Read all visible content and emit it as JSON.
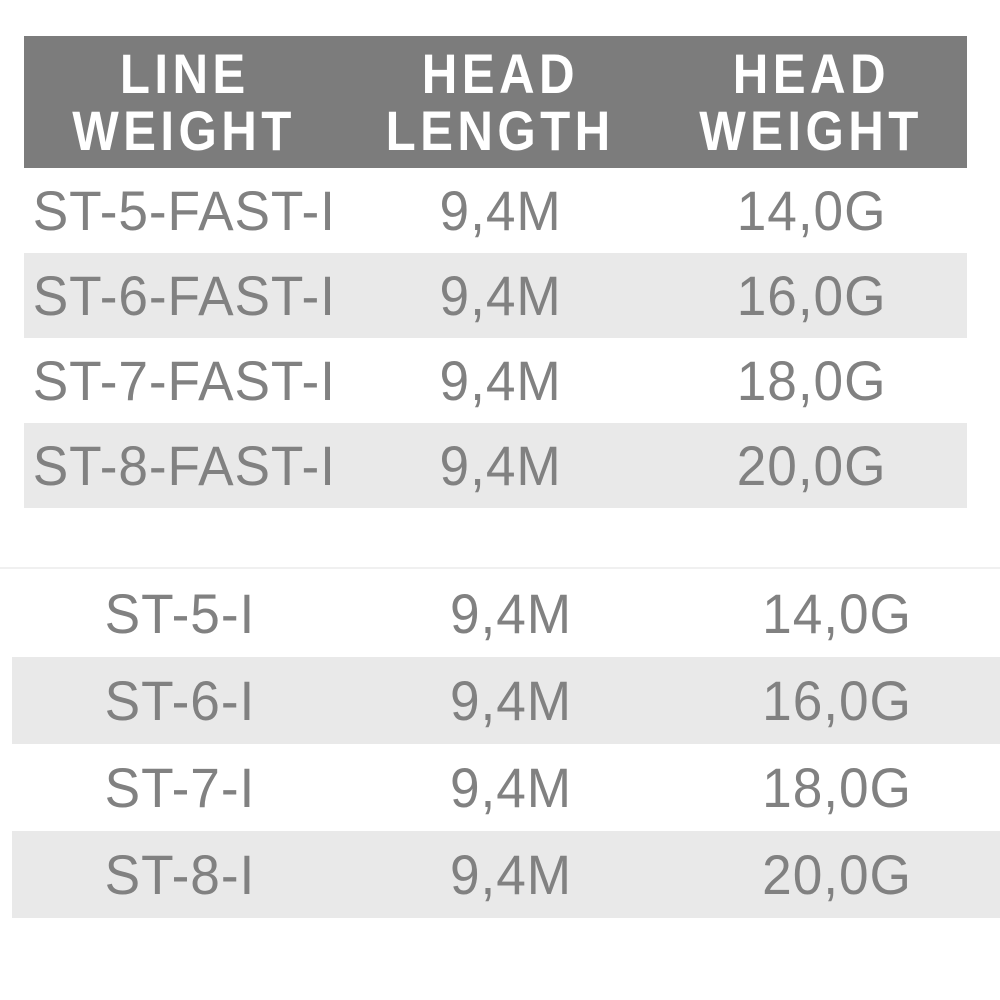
{
  "colors": {
    "header_bg": "#7c7c7c",
    "header_text": "#ffffff",
    "row_alt_bg": "#e9e9e9",
    "body_text": "#818181",
    "divider": "#f0f0f0"
  },
  "table": {
    "header": [
      {
        "line1": "LINE",
        "line2": "WEIGHT"
      },
      {
        "line1": "HEAD",
        "line2": "LENGTH"
      },
      {
        "line1": "HEAD",
        "line2": "WEIGHT"
      }
    ],
    "sections": [
      {
        "rows": [
          {
            "line_weight": "ST-5-FAST-I",
            "head_length": "9,4M",
            "head_weight": "14,0G"
          },
          {
            "line_weight": "ST-6-FAST-I",
            "head_length": "9,4M",
            "head_weight": "16,0G"
          },
          {
            "line_weight": "ST-7-FAST-I",
            "head_length": "9,4M",
            "head_weight": "18,0G"
          },
          {
            "line_weight": "ST-8-FAST-I",
            "head_length": "9,4M",
            "head_weight": "20,0G"
          }
        ]
      },
      {
        "rows": [
          {
            "line_weight": "ST-5-I",
            "head_length": "9,4M",
            "head_weight": "14,0G"
          },
          {
            "line_weight": "ST-6-I",
            "head_length": "9,4M",
            "head_weight": "16,0G"
          },
          {
            "line_weight": "ST-7-I",
            "head_length": "9,4M",
            "head_weight": "18,0G"
          },
          {
            "line_weight": "ST-8-I",
            "head_length": "9,4M",
            "head_weight": "20,0G"
          }
        ]
      }
    ]
  }
}
